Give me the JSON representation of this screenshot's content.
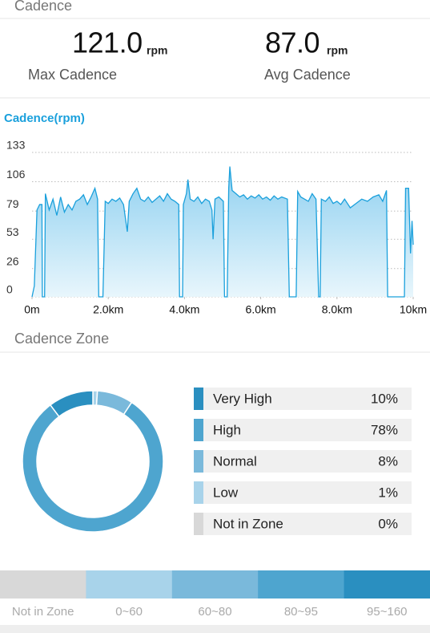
{
  "header": {
    "title": "Cadence"
  },
  "stats": [
    {
      "value": "121.0",
      "unit": "rpm",
      "label": "Max Cadence"
    },
    {
      "value": "87.0",
      "unit": "rpm",
      "label": "Avg Cadence"
    }
  ],
  "chart_data": [
    {
      "type": "line",
      "title": "Cadence(rpm)",
      "color": "#1aa0dc",
      "grid": true,
      "ylim": [
        0,
        133
      ],
      "yticks": [
        0,
        26,
        53,
        79,
        106,
        133
      ],
      "xlim": [
        0,
        10
      ],
      "xticks": [
        {
          "value": 0,
          "label": "0m"
        },
        {
          "value": 2,
          "label": "2.0km"
        },
        {
          "value": 4,
          "label": "4.0km"
        },
        {
          "value": 6,
          "label": "6.0km"
        },
        {
          "value": 8,
          "label": "8.0km"
        },
        {
          "value": 10,
          "label": "10km"
        }
      ],
      "x": [
        0,
        0.06,
        0.13,
        0.2,
        0.26,
        0.27,
        0.33,
        0.35,
        0.45,
        0.55,
        0.65,
        0.75,
        0.85,
        0.95,
        1.05,
        1.15,
        1.25,
        1.35,
        1.45,
        1.55,
        1.65,
        1.72,
        1.75,
        1.86,
        1.92,
        2.0,
        2.1,
        2.2,
        2.3,
        2.4,
        2.5,
        2.55,
        2.65,
        2.75,
        2.85,
        2.95,
        3.05,
        3.15,
        3.25,
        3.35,
        3.45,
        3.55,
        3.65,
        3.75,
        3.85,
        3.87,
        3.95,
        3.97,
        4.05,
        4.09,
        4.15,
        4.25,
        4.35,
        4.45,
        4.55,
        4.65,
        4.72,
        4.75,
        4.8,
        4.9,
        5.02,
        5.05,
        5.12,
        5.16,
        5.19,
        5.25,
        5.35,
        5.45,
        5.55,
        5.65,
        5.75,
        5.85,
        5.95,
        6.05,
        6.15,
        6.25,
        6.35,
        6.45,
        6.55,
        6.7,
        6.75,
        6.93,
        6.97,
        7.05,
        7.15,
        7.25,
        7.35,
        7.45,
        7.52,
        7.56,
        7.59,
        7.7,
        7.8,
        7.9,
        8.0,
        8.1,
        8.2,
        8.35,
        8.5,
        8.65,
        8.8,
        8.95,
        9.1,
        9.2,
        9.3,
        9.33,
        9.77,
        9.8,
        9.88,
        9.93,
        9.97,
        10
      ],
      "values": [
        0,
        10,
        80,
        85,
        85,
        0,
        0,
        95,
        80,
        90,
        75,
        92,
        78,
        85,
        80,
        88,
        90,
        94,
        85,
        92,
        100,
        90,
        0,
        0,
        88,
        86,
        90,
        88,
        91,
        85,
        60,
        88,
        95,
        100,
        90,
        88,
        92,
        87,
        90,
        93,
        88,
        95,
        90,
        88,
        85,
        0,
        0,
        85,
        95,
        108,
        90,
        88,
        92,
        86,
        90,
        88,
        80,
        53,
        90,
        92,
        88,
        0,
        0,
        100,
        120,
        98,
        95,
        92,
        94,
        90,
        93,
        91,
        94,
        90,
        92,
        89,
        93,
        90,
        92,
        90,
        0,
        0,
        97,
        92,
        90,
        88,
        95,
        90,
        0,
        0,
        90,
        88,
        92,
        86,
        88,
        85,
        90,
        82,
        86,
        90,
        88,
        92,
        94,
        88,
        98,
        0,
        0,
        100,
        100,
        40,
        70,
        48
      ]
    },
    {
      "type": "donut",
      "title": "Cadence Zone",
      "categories": [
        "Very High",
        "High",
        "Normal",
        "Low",
        "Not in Zone"
      ],
      "values": [
        10,
        78,
        8,
        1,
        0
      ],
      "value_labels": [
        "10%",
        "78%",
        "8%",
        "1%",
        "0%"
      ],
      "colors": [
        "#2a8fc0",
        "#4ea5cf",
        "#7ab9db",
        "#a8d3ea",
        "#d8d8d8"
      ]
    }
  ],
  "zone_scale": {
    "labels": [
      "Not in Zone",
      "0~60",
      "60~80",
      "80~95",
      "95~160"
    ],
    "colors": [
      "#d8d8d8",
      "#a8d3ea",
      "#7ab9db",
      "#4ea5cf",
      "#2a8fc0"
    ]
  }
}
